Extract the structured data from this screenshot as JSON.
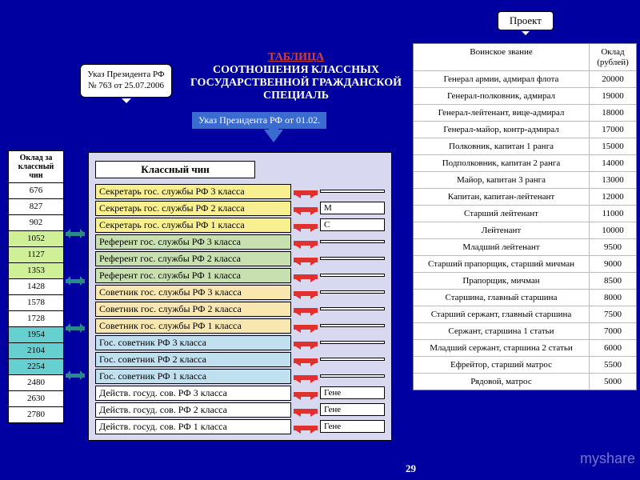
{
  "title": {
    "line1": "ТАБЛИЦА",
    "line2": "СООТНОШЕНИЯ КЛАССНЫХ",
    "line3": "ГОСУДАРСТВЕННОЙ ГРАЖДАНСКОЙ",
    "line4": "СПЕЦИАЛЬ"
  },
  "decree_callout": "Указ Президента РФ № 763 от 25.07.2006",
  "decree_badge": "Указ Президента РФ от 01.02.",
  "project_label": "Проект",
  "salary_header": "Оклад за классный чин",
  "salaries": [
    {
      "v": "676",
      "g": "g1"
    },
    {
      "v": "827",
      "g": "g1"
    },
    {
      "v": "902",
      "g": "g1"
    },
    {
      "v": "1052",
      "g": "g2"
    },
    {
      "v": "1127",
      "g": "g2"
    },
    {
      "v": "1353",
      "g": "g2"
    },
    {
      "v": "1428",
      "g": "g3"
    },
    {
      "v": "1578",
      "g": "g3"
    },
    {
      "v": "1728",
      "g": "g3"
    },
    {
      "v": "1954",
      "g": "g4"
    },
    {
      "v": "2104",
      "g": "g4"
    },
    {
      "v": "2254",
      "g": "g4"
    },
    {
      "v": "2480",
      "g": "g5"
    },
    {
      "v": "2630",
      "g": "g5"
    },
    {
      "v": "2780",
      "g": "g5"
    }
  ],
  "rank_header": "Классный чин",
  "ranks": [
    {
      "t": "Секретарь гос. службы РФ 3 класса",
      "c": "c1",
      "m": ""
    },
    {
      "t": "Секретарь гос. службы РФ 2 класса",
      "c": "c1",
      "m": "М"
    },
    {
      "t": "Секретарь гос. службы РФ 1 класса",
      "c": "c1",
      "m": "С"
    },
    {
      "t": "Референт гос. службы РФ 3 класса",
      "c": "c2",
      "m": ""
    },
    {
      "t": "Референт гос. службы РФ 2 класса",
      "c": "c2",
      "m": ""
    },
    {
      "t": "Референт гос. службы РФ 1 класса",
      "c": "c2",
      "m": ""
    },
    {
      "t": "Советник гос. службы РФ 3 класса",
      "c": "c3",
      "m": ""
    },
    {
      "t": "Советник гос. службы РФ 2 класса",
      "c": "c3",
      "m": ""
    },
    {
      "t": "Советник гос. службы РФ 1 класса",
      "c": "c3",
      "m": ""
    },
    {
      "t": "Гос. советник РФ 3 класса",
      "c": "c4",
      "m": ""
    },
    {
      "t": "Гос. советник РФ 2 класса",
      "c": "c4",
      "m": ""
    },
    {
      "t": "Гос. советник РФ 1 класса",
      "c": "c4",
      "m": ""
    },
    {
      "t": "Действ. госуд. сов. РФ 3 класса",
      "c": "c5",
      "m": "Гене"
    },
    {
      "t": "Действ. госуд. сов. РФ 2 класса",
      "c": "c5",
      "m": "Гене"
    },
    {
      "t": "Действ. госуд. сов. РФ 1 класса",
      "c": "c5",
      "m": "Гене"
    }
  ],
  "mil_header_rank": "Воинское звание",
  "mil_header_sal": "Оклад (рублей)",
  "mil": [
    {
      "r": "Генерал армии, адмирал флота",
      "s": "20000"
    },
    {
      "r": "Генерал-полковник, адмирал",
      "s": "19000"
    },
    {
      "r": "Генерал-лейтенант, вице-адмирал",
      "s": "18000"
    },
    {
      "r": "Генерал-майор, контр-адмирал",
      "s": "17000"
    },
    {
      "r": "Полковник, капитан 1 ранга",
      "s": "15000"
    },
    {
      "r": "Подполковник, капитан 2 ранга",
      "s": "14000"
    },
    {
      "r": "Майор, капитан 3 ранга",
      "s": "13000"
    },
    {
      "r": "Капитан, капитан-лейтенант",
      "s": "12000"
    },
    {
      "r": "Старший лейтенант",
      "s": "11000"
    },
    {
      "r": "Лейтенант",
      "s": "10000"
    },
    {
      "r": "Младший лейтенант",
      "s": "9500"
    },
    {
      "r": "Старший прапорщик, старший мичман",
      "s": "9000"
    },
    {
      "r": "Прапорщик, мичман",
      "s": "8500"
    },
    {
      "r": "Старшина, главный старшина",
      "s": "8000"
    },
    {
      "r": "Старший сержант, главный старшина",
      "s": "7500"
    },
    {
      "r": "Сержант, старшина 1 статьи",
      "s": "7000"
    },
    {
      "r": "Младший сержант, старшина 2 статьи",
      "s": "6000"
    },
    {
      "r": "Ефрейтор, старший матрос",
      "s": "5500"
    },
    {
      "r": "Рядовой, матрос",
      "s": "5000"
    }
  ],
  "page_number": "29",
  "watermark": "myshare"
}
